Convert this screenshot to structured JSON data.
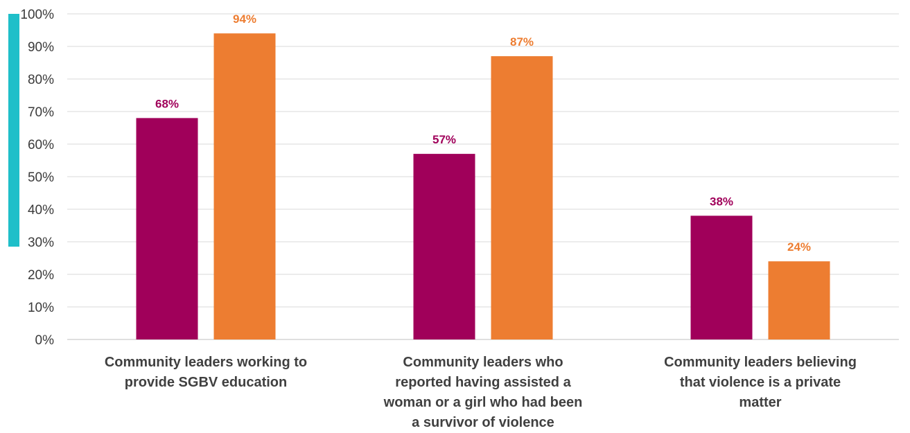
{
  "accent": "#1fbfc9",
  "chart_data": {
    "type": "bar",
    "categories": [
      [
        "Community leaders working to",
        "provide SGBV education"
      ],
      [
        "Community leaders who",
        "reported having assisted a",
        "woman or a girl who had been",
        "a survivor of violence"
      ],
      [
        "Community leaders believing",
        "that violence is a private",
        "matter"
      ]
    ],
    "series": [
      {
        "values": [
          68,
          57,
          38
        ],
        "labels": [
          "68%",
          "57%",
          "38%"
        ],
        "color": "#a0005a"
      },
      {
        "values": [
          94,
          87,
          24
        ],
        "labels": [
          "94%",
          "87%",
          "24%"
        ],
        "color": "#ed7d31"
      }
    ],
    "ylim": [
      0,
      100
    ],
    "yticks": [
      "0%",
      "10%",
      "20%",
      "30%",
      "40%",
      "50%",
      "60%",
      "70%",
      "80%",
      "90%",
      "100%"
    ],
    "grid": true,
    "legend": "none",
    "title": "",
    "xlabel": "",
    "ylabel": ""
  }
}
